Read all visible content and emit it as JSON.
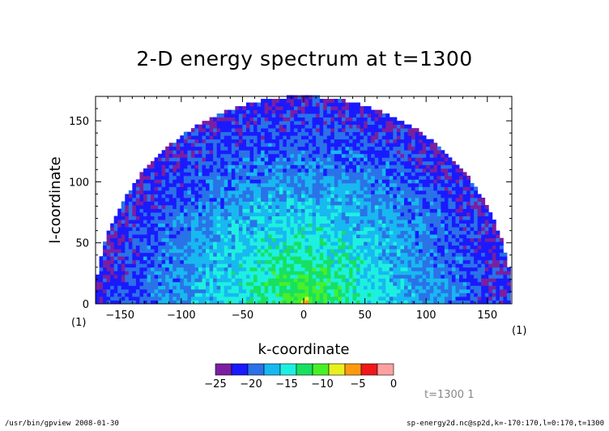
{
  "chart_data": {
    "type": "heatmap",
    "title": "2-D energy spectrum at t=1300",
    "xlabel": "k-coordinate",
    "ylabel": "l-coordinate",
    "xlim": [
      -170,
      170
    ],
    "ylim": [
      0,
      170
    ],
    "xticks": [
      -150,
      -100,
      -50,
      0,
      50,
      100,
      150
    ],
    "yticks": [
      0,
      50,
      100,
      150
    ],
    "field_radius": 170,
    "field_value_at_center": -8,
    "field_value_at_edge": -22,
    "colorbar": {
      "levels": [
        -25,
        -22.5,
        -20,
        -17.5,
        -15,
        -12.5,
        -10,
        -7.5,
        -5,
        -2.5,
        0
      ],
      "tick_labels": [
        "-25",
        "-20",
        "-15",
        "-10",
        "-5",
        "0"
      ],
      "colors": [
        "#7b1fa2",
        "#1a1aff",
        "#2a72e8",
        "#18b8f0",
        "#1ef0e0",
        "#18e060",
        "#48f028",
        "#e8f020",
        "#ff9a10",
        "#f01818",
        "#ffa0a0"
      ]
    },
    "corner_labels": {
      "left": "(1)",
      "right": "(1)"
    }
  },
  "footer": {
    "left": "/usr/bin/gpview  2008-01-30",
    "right": "sp-energy2d.nc@sp2d,k=-170:170,l=0:170,t=1300",
    "time_info": "t=1300  1"
  }
}
